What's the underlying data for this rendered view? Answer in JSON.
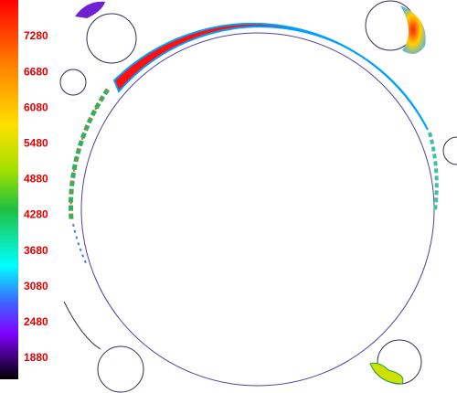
{
  "colorbar": {
    "ticks": [
      7280,
      6680,
      6080,
      5480,
      4880,
      4280,
      3680,
      3080,
      2480,
      1880
    ]
  }
}
